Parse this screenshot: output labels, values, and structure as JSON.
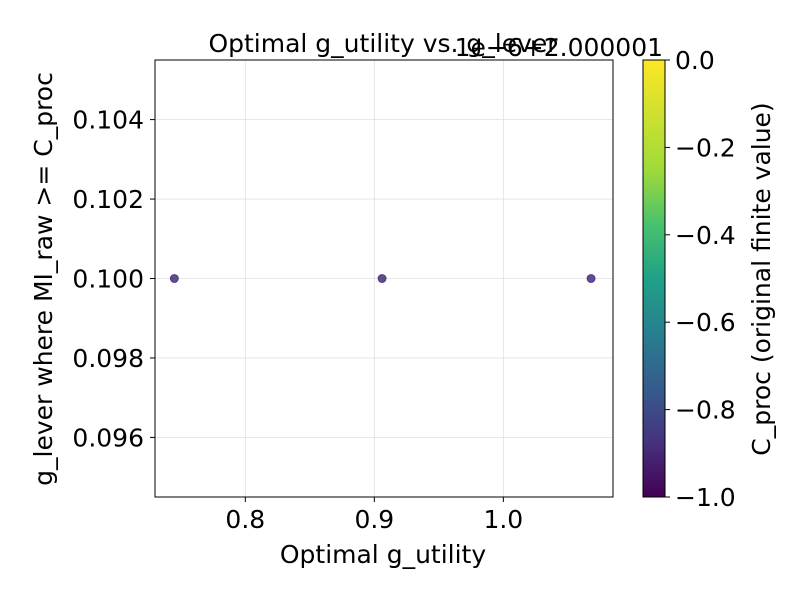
{
  "chart_data": {
    "type": "scatter",
    "title": "Optimal g_utility vs. g_lever",
    "offset_text": "1e−6+2.000001",
    "xlabel": "Optimal g_utility",
    "ylabel": "g_lever where MI_raw >= C_proc",
    "xlim": [
      0.73,
      1.085
    ],
    "ylim": [
      0.0945,
      0.1055
    ],
    "xticks": [
      0.8,
      0.9,
      1.0
    ],
    "xtick_labels": [
      "0.8",
      "0.9",
      "1.0"
    ],
    "yticks": [
      0.096,
      0.098,
      0.1,
      0.102,
      0.104
    ],
    "ytick_labels": [
      "0.096",
      "0.098",
      "0.100",
      "0.102",
      "0.104"
    ],
    "grid": true,
    "points": [
      {
        "x": 0.745,
        "y": 0.1,
        "c": -1.0
      },
      {
        "x": 0.906,
        "y": 0.1,
        "c": -1.0
      },
      {
        "x": 1.068,
        "y": 0.1,
        "c": -1.0
      }
    ],
    "point_color": "#472c7a",
    "colorbar": {
      "label": "C_proc (original finite value)",
      "colormap": "viridis",
      "range": [
        -1.0,
        0.0
      ],
      "ticks": [
        0.0,
        -0.2,
        -0.4,
        -0.6,
        -0.8,
        -1.0
      ],
      "tick_labels": [
        "0.0",
        "−0.2",
        "−0.4",
        "−0.6",
        "−0.8",
        "−1.0"
      ]
    }
  }
}
